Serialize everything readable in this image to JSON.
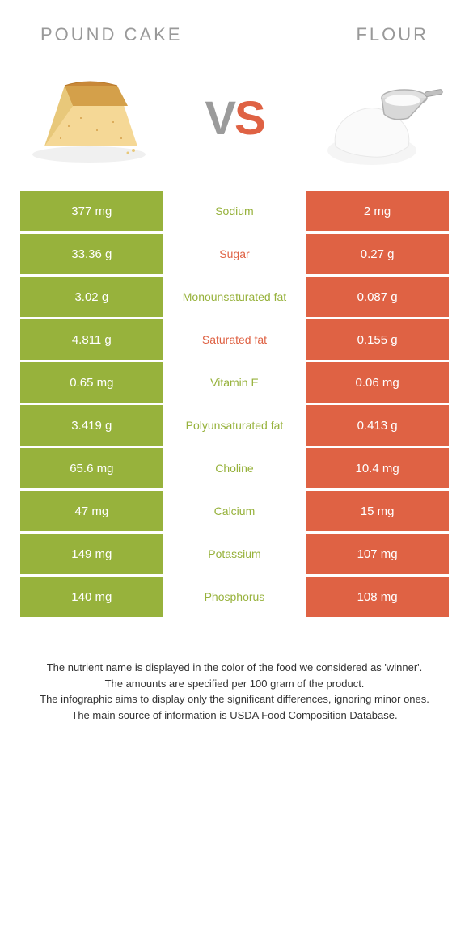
{
  "header": {
    "left_title": "POUND CAKE",
    "right_title": "FLOUR"
  },
  "vs": {
    "v": "V",
    "s": "S"
  },
  "colors": {
    "left_bg": "#97b23c",
    "right_bg": "#df6244",
    "left_text": "#97b23c",
    "right_text": "#df6244"
  },
  "rows": [
    {
      "left": "377 mg",
      "label": "Sodium",
      "right": "2 mg",
      "winner": "left"
    },
    {
      "left": "33.36 g",
      "label": "Sugar",
      "right": "0.27 g",
      "winner": "right"
    },
    {
      "left": "3.02 g",
      "label": "Monounsaturated fat",
      "right": "0.087 g",
      "winner": "left"
    },
    {
      "left": "4.811 g",
      "label": "Saturated fat",
      "right": "0.155 g",
      "winner": "right"
    },
    {
      "left": "0.65 mg",
      "label": "Vitamin E",
      "right": "0.06 mg",
      "winner": "left"
    },
    {
      "left": "3.419 g",
      "label": "Polyunsaturated fat",
      "right": "0.413 g",
      "winner": "left"
    },
    {
      "left": "65.6 mg",
      "label": "Choline",
      "right": "10.4 mg",
      "winner": "left"
    },
    {
      "left": "47 mg",
      "label": "Calcium",
      "right": "15 mg",
      "winner": "left"
    },
    {
      "left": "149 mg",
      "label": "Potassium",
      "right": "107 mg",
      "winner": "left"
    },
    {
      "left": "140 mg",
      "label": "Phosphorus",
      "right": "108 mg",
      "winner": "left"
    }
  ],
  "footer": {
    "line1": "The nutrient name is displayed in the color of the food we considered as 'winner'.",
    "line2": "The amounts are specified per 100 gram of the product.",
    "line3": "The infographic aims to display only the significant differences, ignoring minor ones.",
    "line4": "The main source of information is USDA Food Composition Database."
  }
}
